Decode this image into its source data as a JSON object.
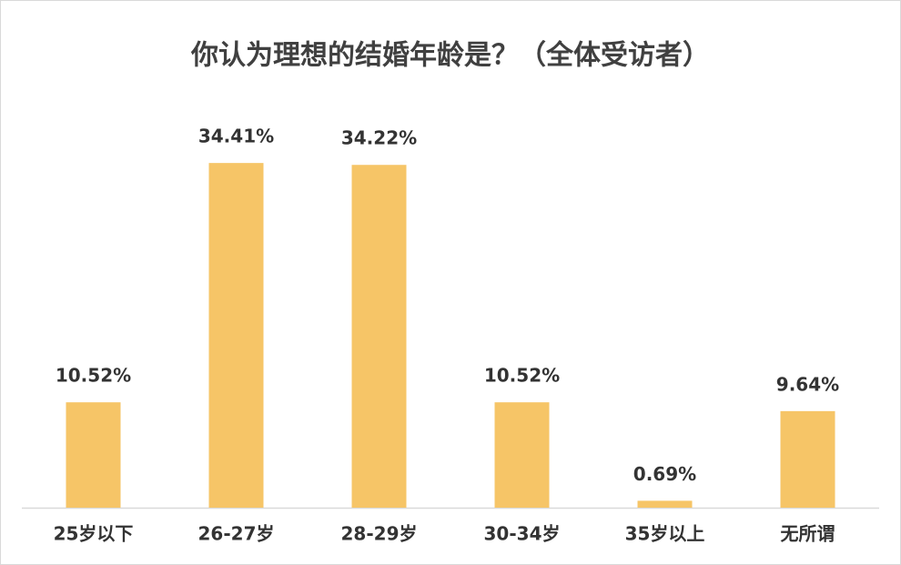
{
  "chart_data": {
    "type": "bar",
    "title": "你认为理想的结婚年龄是？（全体受访者）",
    "categories": [
      "25岁以下",
      "26-27岁",
      "28-29岁",
      "30-34岁",
      "35岁以上",
      "无所谓"
    ],
    "values": [
      10.52,
      34.41,
      34.22,
      10.52,
      0.69,
      9.64
    ],
    "value_labels": [
      "10.52%",
      "34.41%",
      "34.22%",
      "10.52%",
      "0.69%",
      "9.64%"
    ],
    "color": "#f6c567"
  }
}
